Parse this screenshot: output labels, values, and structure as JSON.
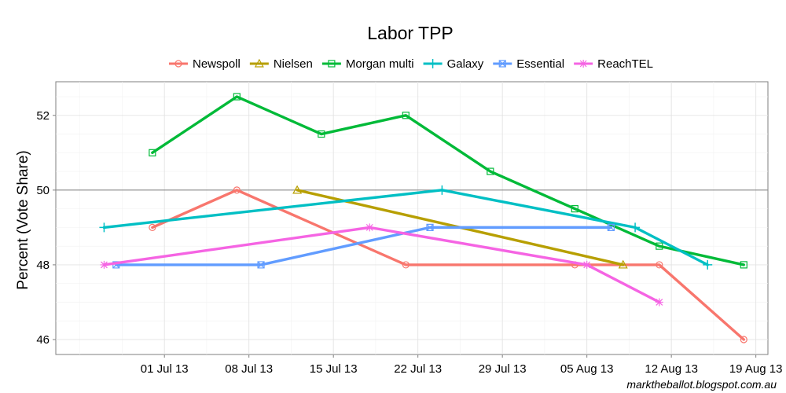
{
  "chart_data": {
    "type": "line",
    "title": "Labor TPP",
    "ylabel": "Percent (Vote Share)",
    "xlabel": "",
    "ylim": [
      45.6,
      52.9
    ],
    "xlim": [
      "2013-06-22",
      "2013-08-20"
    ],
    "yticks": [
      46,
      48,
      50,
      52
    ],
    "xticks": [
      {
        "date": "2013-07-01",
        "label": "01 Jul 13"
      },
      {
        "date": "2013-07-08",
        "label": "08 Jul 13"
      },
      {
        "date": "2013-07-15",
        "label": "15 Jul 13"
      },
      {
        "date": "2013-07-22",
        "label": "22 Jul 13"
      },
      {
        "date": "2013-07-29",
        "label": "29 Jul 13"
      },
      {
        "date": "2013-08-05",
        "label": "05 Aug 13"
      },
      {
        "date": "2013-08-12",
        "label": "12 Aug 13"
      },
      {
        "date": "2013-08-19",
        "label": "19 Aug 13"
      }
    ],
    "reference_line": 50,
    "grid": true,
    "legend_position": "top",
    "series": [
      {
        "name": "Newspoll",
        "color": "#F8766D",
        "marker": "circle",
        "points": [
          [
            "2013-06-30",
            49
          ],
          [
            "2013-07-07",
            50
          ],
          [
            "2013-07-21",
            48
          ],
          [
            "2013-08-04",
            48
          ],
          [
            "2013-08-11",
            48
          ],
          [
            "2013-08-18",
            46
          ]
        ]
      },
      {
        "name": "Nielsen",
        "color": "#B79F00",
        "marker": "triangle",
        "points": [
          [
            "2013-07-12",
            50
          ],
          [
            "2013-08-08",
            48
          ]
        ]
      },
      {
        "name": "Morgan multi",
        "color": "#00BA38",
        "marker": "square",
        "points": [
          [
            "2013-06-30",
            51
          ],
          [
            "2013-07-07",
            52.5
          ],
          [
            "2013-07-14",
            51.5
          ],
          [
            "2013-07-21",
            52
          ],
          [
            "2013-07-28",
            50.5
          ],
          [
            "2013-08-04",
            49.5
          ],
          [
            "2013-08-11",
            48.5
          ],
          [
            "2013-08-18",
            48
          ]
        ]
      },
      {
        "name": "Galaxy",
        "color": "#00BFC4",
        "marker": "plus",
        "points": [
          [
            "2013-06-26",
            49
          ],
          [
            "2013-07-24",
            50
          ],
          [
            "2013-08-09",
            49
          ],
          [
            "2013-08-15",
            48
          ]
        ]
      },
      {
        "name": "Essential",
        "color": "#619CFF",
        "marker": "boxcross",
        "points": [
          [
            "2013-06-27",
            48
          ],
          [
            "2013-07-09",
            48
          ],
          [
            "2013-07-23",
            49
          ],
          [
            "2013-08-07",
            49
          ]
        ]
      },
      {
        "name": "ReachTEL",
        "color": "#F564E3",
        "marker": "asterisk",
        "points": [
          [
            "2013-06-26",
            48
          ],
          [
            "2013-07-18",
            49
          ],
          [
            "2013-08-05",
            48
          ],
          [
            "2013-08-11",
            47
          ]
        ]
      }
    ]
  },
  "credit": "marktheballot.blogspot.com.au"
}
